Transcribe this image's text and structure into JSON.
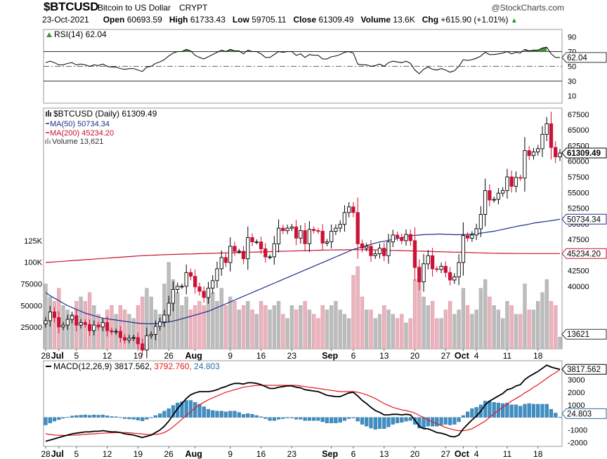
{
  "header": {
    "symbol": "$BTCUSD",
    "description": "Bitcoin to US Dollar",
    "exchange": "CRYPT",
    "brand": "@StockCharts.com",
    "date": "23-Oct-2021",
    "open_label": "Open",
    "open": "60693.59",
    "high_label": "High",
    "high": "61733.43",
    "low_label": "Low",
    "low": "59705.11",
    "close_label": "Close",
    "close": "61309.49",
    "volume_label": "Volume",
    "volume": "13.6K",
    "chg_label": "Chg",
    "chg": "+615.90 (+1.01%)",
    "chg_arrow": "▲"
  },
  "colors": {
    "up": "#000000",
    "down": "#cc1236",
    "ma50": "#1f2d8c",
    "ma200": "#c8102e",
    "vol_up": "#bcbcbc",
    "vol_down": "#eab3bd",
    "macd_hist": "#3f8fc4",
    "signal": "#e31a1c"
  },
  "legends": {
    "rsi": "RSI(14) 62.04",
    "price": "$BTCUSD (Daily) 61309.49",
    "ma50": "MA(50) 50734.34",
    "ma200": "MA(200) 45234.20",
    "volume": "Volume 13,621",
    "macd_prefix": "MACD(12,26,9)",
    "macd_value": "3817.562,",
    "macd_signal": "3792.760,",
    "macd_hist": "24.803"
  },
  "tags": {
    "rsi": "62.04",
    "price": "61309.49",
    "ma50": "50734.34",
    "ma200": "45234.20",
    "volume": "13621",
    "macd": "3817.562",
    "macd_hist": "24.803"
  },
  "chart_data": {
    "type": "candlestick",
    "dates": [
      "2021-06-28",
      "2021-06-29",
      "2021-06-30",
      "2021-07-01",
      "2021-07-02",
      "2021-07-03",
      "2021-07-04",
      "2021-07-05",
      "2021-07-06",
      "2021-07-07",
      "2021-07-08",
      "2021-07-09",
      "2021-07-10",
      "2021-07-11",
      "2021-07-12",
      "2021-07-13",
      "2021-07-14",
      "2021-07-15",
      "2021-07-16",
      "2021-07-17",
      "2021-07-18",
      "2021-07-19",
      "2021-07-20",
      "2021-07-21",
      "2021-07-22",
      "2021-07-23",
      "2021-07-24",
      "2021-07-25",
      "2021-07-26",
      "2021-07-27",
      "2021-07-28",
      "2021-07-29",
      "2021-07-30",
      "2021-07-31",
      "2021-08-01",
      "2021-08-02",
      "2021-08-03",
      "2021-08-04",
      "2021-08-05",
      "2021-08-06",
      "2021-08-07",
      "2021-08-08",
      "2021-08-09",
      "2021-08-10",
      "2021-08-11",
      "2021-08-12",
      "2021-08-13",
      "2021-08-14",
      "2021-08-15",
      "2021-08-16",
      "2021-08-17",
      "2021-08-18",
      "2021-08-19",
      "2021-08-20",
      "2021-08-21",
      "2021-08-22",
      "2021-08-23",
      "2021-08-24",
      "2021-08-25",
      "2021-08-26",
      "2021-08-27",
      "2021-08-28",
      "2021-08-29",
      "2021-08-30",
      "2021-08-31",
      "2021-09-01",
      "2021-09-02",
      "2021-09-03",
      "2021-09-04",
      "2021-09-05",
      "2021-09-06",
      "2021-09-07",
      "2021-09-08",
      "2021-09-09",
      "2021-09-10",
      "2021-09-11",
      "2021-09-12",
      "2021-09-13",
      "2021-09-14",
      "2021-09-15",
      "2021-09-16",
      "2021-09-17",
      "2021-09-18",
      "2021-09-19",
      "2021-09-20",
      "2021-09-21",
      "2021-09-22",
      "2021-09-23",
      "2021-09-24",
      "2021-09-25",
      "2021-09-26",
      "2021-09-27",
      "2021-09-28",
      "2021-09-29",
      "2021-09-30",
      "2021-10-01",
      "2021-10-02",
      "2021-10-03",
      "2021-10-04",
      "2021-10-05",
      "2021-10-06",
      "2021-10-07",
      "2021-10-08",
      "2021-10-09",
      "2021-10-10",
      "2021-10-11",
      "2021-10-12",
      "2021-10-13",
      "2021-10-14",
      "2021-10-15",
      "2021-10-16",
      "2021-10-17",
      "2021-10-18",
      "2021-10-19",
      "2021-10-20",
      "2021-10-21",
      "2021-10-22",
      "2021-10-23"
    ],
    "close": [
      34500,
      35900,
      35000,
      33500,
      33800,
      34700,
      35300,
      33800,
      34200,
      33900,
      32900,
      33800,
      33500,
      34200,
      32900,
      32700,
      32800,
      31800,
      31400,
      31700,
      31800,
      30800,
      29800,
      32100,
      32300,
      33600,
      34300,
      35400,
      37300,
      39500,
      40000,
      40000,
      42200,
      41600,
      39900,
      39200,
      38200,
      39700,
      40900,
      42800,
      44600,
      43800,
      46400,
      45600,
      45600,
      44400,
      47800,
      47100,
      47100,
      46000,
      44700,
      44700,
      46800,
      49300,
      48900,
      49300,
      49500,
      47700,
      48900,
      46800,
      49100,
      48900,
      48800,
      46900,
      47100,
      48800,
      49300,
      49900,
      51800,
      52700,
      51800,
      46800,
      46100,
      46400,
      44900,
      45200,
      46100,
      44900,
      47100,
      48200,
      47800,
      47300,
      48300,
      47300,
      43000,
      40700,
      43600,
      44900,
      42800,
      42700,
      43200,
      42200,
      41000,
      41500,
      43800,
      48100,
      47700,
      48200,
      49200,
      51500,
      55300,
      53800,
      53900,
      54900,
      55300,
      57500,
      56000,
      57400,
      57300,
      61700,
      60900,
      61500,
      62000,
      64300,
      66000,
      62200,
      60700,
      61300
    ],
    "ma50": [
      39000,
      38500,
      38100,
      37700,
      37300,
      36900,
      36600,
      36300,
      36000,
      35700,
      35500,
      35300,
      35100,
      34900,
      34800,
      34700,
      34600,
      34500,
      34400,
      34300,
      34200,
      34100,
      34050,
      34000,
      34000,
      34000,
      34100,
      34200,
      34300,
      34450,
      34600,
      34800,
      35000,
      35200,
      35400,
      35600,
      35800,
      36000,
      36300,
      36600,
      36900,
      37200,
      37500,
      37800,
      38100,
      38400,
      38700,
      39000,
      39300,
      39600,
      39900,
      40200,
      40500,
      40800,
      41100,
      41400,
      41700,
      42000,
      42300,
      42600,
      42900,
      43200,
      43500,
      43800,
      44100,
      44400,
      44700,
      45000,
      45300,
      45600,
      45900,
      46100,
      46300,
      46500,
      46700,
      46900,
      47100,
      47200,
      47350,
      47500,
      47650,
      47800,
      47950,
      48100,
      48150,
      48200,
      48250,
      48300,
      48300,
      48350,
      48350,
      48300,
      48300,
      48250,
      48250,
      48250,
      48300,
      48350,
      48400,
      48500,
      48600,
      48700,
      48800,
      48950,
      49100,
      49250,
      49400,
      49550,
      49700,
      49800,
      49950,
      50100,
      50200,
      50300,
      50400,
      50500,
      50600,
      50734
    ],
    "ma200": [
      43800,
      43850,
      43900,
      43950,
      44000,
      44050,
      44100,
      44150,
      44200,
      44250,
      44300,
      44350,
      44400,
      44450,
      44500,
      44550,
      44600,
      44650,
      44700,
      44750,
      44800,
      44850,
      44900,
      44930,
      44960,
      44990,
      45020,
      45050,
      45080,
      45100,
      45120,
      45140,
      45160,
      45180,
      45200,
      45220,
      45240,
      45260,
      45280,
      45300,
      45320,
      45340,
      45360,
      45380,
      45400,
      45420,
      45440,
      45460,
      45480,
      45500,
      45520,
      45540,
      45560,
      45580,
      45600,
      45620,
      45640,
      45660,
      45680,
      45700,
      45720,
      45740,
      45760,
      45780,
      45790,
      45800,
      45810,
      45820,
      45830,
      45840,
      45850,
      45850,
      45850,
      45840,
      45830,
      45820,
      45800,
      45780,
      45760,
      45740,
      45720,
      45700,
      45680,
      45660,
      45640,
      45620,
      45600,
      45580,
      45560,
      45540,
      45520,
      45500,
      45480,
      45460,
      45440,
      45420,
      45400,
      45380,
      45360,
      45340,
      45320,
      45300,
      45290,
      45280,
      45270,
      45260,
      45250,
      45245,
      45240,
      45238,
      45236,
      45235,
      45234,
      45234,
      45234,
      45234,
      45234,
      45234
    ],
    "volume": [
      75000,
      60000,
      55000,
      70000,
      50000,
      45000,
      40000,
      55000,
      60000,
      55000,
      65000,
      50000,
      40000,
      35000,
      45000,
      50000,
      40000,
      50000,
      45000,
      40000,
      35000,
      50000,
      60000,
      70000,
      60000,
      45000,
      40000,
      75000,
      100000,
      80000,
      65000,
      50000,
      60000,
      45000,
      50000,
      55000,
      50000,
      60000,
      65000,
      55000,
      70000,
      50000,
      60000,
      55000,
      45000,
      50000,
      55000,
      45000,
      40000,
      55000,
      50000,
      45000,
      50000,
      55000,
      40000,
      35000,
      50000,
      45000,
      50000,
      55000,
      45000,
      40000,
      35000,
      50000,
      45000,
      50000,
      55000,
      45000,
      40000,
      35000,
      85000,
      95000,
      60000,
      45000,
      45000,
      35000,
      40000,
      50000,
      45000,
      40000,
      35000,
      40000,
      30000,
      35000,
      80000,
      95000,
      60000,
      50000,
      55000,
      35000,
      35000,
      45000,
      55000,
      40000,
      45000,
      70000,
      50000,
      40000,
      45000,
      70000,
      80000,
      60000,
      50000,
      45000,
      35000,
      55000,
      50000,
      40000,
      40000,
      75000,
      45000,
      45000,
      55000,
      65000,
      80000,
      55000,
      50000,
      13621
    ],
    "rsi": [
      55,
      57,
      55,
      52,
      52,
      54,
      55,
      52,
      53,
      52,
      50,
      52,
      51,
      53,
      50,
      49,
      49,
      47,
      46,
      47,
      47,
      45,
      43,
      49,
      50,
      54,
      56,
      59,
      64,
      68,
      70,
      70,
      73,
      71,
      65,
      62,
      60,
      63,
      66,
      69,
      72,
      70,
      73,
      71,
      71,
      67,
      72,
      70,
      70,
      67,
      62,
      62,
      66,
      70,
      69,
      70,
      70,
      65,
      67,
      62,
      66,
      65,
      65,
      60,
      60,
      63,
      64,
      66,
      69,
      70,
      68,
      53,
      52,
      52,
      50,
      51,
      53,
      50,
      55,
      57,
      56,
      55,
      57,
      54,
      45,
      40,
      46,
      49,
      46,
      45,
      47,
      45,
      42,
      44,
      50,
      59,
      58,
      59,
      61,
      64,
      69,
      66,
      66,
      67,
      68,
      70,
      67,
      69,
      68,
      73,
      71,
      72,
      72,
      75,
      76,
      67,
      62,
      62.04
    ],
    "macd": [
      -1900,
      -1800,
      -1700,
      -1600,
      -1500,
      -1400,
      -1300,
      -1250,
      -1200,
      -1150,
      -1150,
      -1100,
      -1100,
      -1050,
      -1100,
      -1150,
      -1150,
      -1200,
      -1300,
      -1350,
      -1400,
      -1500,
      -1600,
      -1500,
      -1400,
      -1200,
      -1000,
      -700,
      -300,
      200,
      700,
      1100,
      1500,
      1800,
      1950,
      2050,
      2050,
      2050,
      2100,
      2200,
      2350,
      2450,
      2600,
      2700,
      2700,
      2650,
      2750,
      2750,
      2700,
      2600,
      2450,
      2300,
      2300,
      2400,
      2450,
      2500,
      2500,
      2400,
      2350,
      2200,
      2150,
      2100,
      2050,
      1900,
      1750,
      1700,
      1650,
      1650,
      1800,
      1950,
      2000,
      1700,
      1350,
      1100,
      800,
      550,
      400,
      200,
      200,
      250,
      250,
      200,
      250,
      200,
      -200,
      -700,
      -900,
      -900,
      -1050,
      -1200,
      -1250,
      -1350,
      -1500,
      -1550,
      -1400,
      -900,
      -550,
      -200,
      100,
      500,
      1000,
      1300,
      1500,
      1700,
      1900,
      2200,
      2300,
      2500,
      2600,
      3000,
      3250,
      3450,
      3650,
      3900,
      4150,
      4000,
      3900,
      3817.562
    ],
    "signal": [
      -1300,
      -1350,
      -1400,
      -1420,
      -1430,
      -1430,
      -1420,
      -1400,
      -1380,
      -1350,
      -1320,
      -1300,
      -1280,
      -1250,
      -1230,
      -1220,
      -1210,
      -1200,
      -1200,
      -1220,
      -1250,
      -1280,
      -1320,
      -1350,
      -1360,
      -1350,
      -1300,
      -1200,
      -1000,
      -750,
      -450,
      -150,
      150,
      450,
      750,
      1000,
      1200,
      1400,
      1550,
      1700,
      1850,
      2000,
      2100,
      2200,
      2300,
      2400,
      2450,
      2500,
      2550,
      2550,
      2550,
      2550,
      2550,
      2550,
      2550,
      2550,
      2550,
      2550,
      2500,
      2450,
      2400,
      2350,
      2300,
      2250,
      2200,
      2150,
      2100,
      2050,
      2050,
      2050,
      2050,
      2000,
      1900,
      1800,
      1650,
      1500,
      1300,
      1100,
      950,
      800,
      700,
      600,
      550,
      450,
      350,
      150,
      0,
      -200,
      -350,
      -500,
      -650,
      -800,
      -900,
      -1000,
      -1050,
      -1050,
      -1000,
      -900,
      -700,
      -500,
      -300,
      0,
      300,
      550,
      800,
      1050,
      1300,
      1500,
      1700,
      1950,
      2150,
      2400,
      2600,
      2850,
      3100,
      3350,
      3550,
      3792.76
    ],
    "price_axis": {
      "ticks": [
        40000,
        42500,
        45000,
        47500,
        50000,
        52500,
        55000,
        57500,
        60000,
        62500,
        65000,
        67500
      ],
      "ylim": [
        30000,
        68500
      ]
    },
    "volume_axis": {
      "ticks": [
        25000,
        50000,
        75000,
        100000,
        125000
      ],
      "labels": [
        "25000",
        "50000",
        "75000",
        "100K",
        "125K"
      ]
    },
    "rsi_axis": {
      "ticks": [
        10,
        30,
        50,
        70,
        90
      ],
      "ylim": [
        0,
        100
      ],
      "bands": [
        30,
        70
      ]
    },
    "macd_axis": {
      "ticks": [
        -2000,
        -1000,
        1000,
        2000,
        3000
      ],
      "labels": [
        "-2000",
        "-1000",
        "1000",
        "2000",
        "3000"
      ],
      "ylim": [
        -2300,
        4500
      ]
    },
    "x_ticks": [
      {
        "index": 0,
        "label": "28"
      },
      {
        "index": 3,
        "label": "Jul",
        "bold": true
      },
      {
        "index": 7,
        "label": "5"
      },
      {
        "index": 14,
        "label": "12"
      },
      {
        "index": 21,
        "label": "19"
      },
      {
        "index": 28,
        "label": "26"
      },
      {
        "index": 34,
        "label": "Aug",
        "bold": true
      },
      {
        "index": 42,
        "label": "9"
      },
      {
        "index": 49,
        "label": "16"
      },
      {
        "index": 56,
        "label": "23"
      },
      {
        "index": 65,
        "label": "Sep",
        "bold": true
      },
      {
        "index": 70,
        "label": "6"
      },
      {
        "index": 77,
        "label": "13"
      },
      {
        "index": 84,
        "label": "20"
      },
      {
        "index": 91,
        "label": "27"
      },
      {
        "index": 95,
        "label": "Oct",
        "bold": true
      },
      {
        "index": 98,
        "label": "4"
      },
      {
        "index": 105,
        "label": "11"
      },
      {
        "index": 112,
        "label": "18"
      }
    ]
  }
}
